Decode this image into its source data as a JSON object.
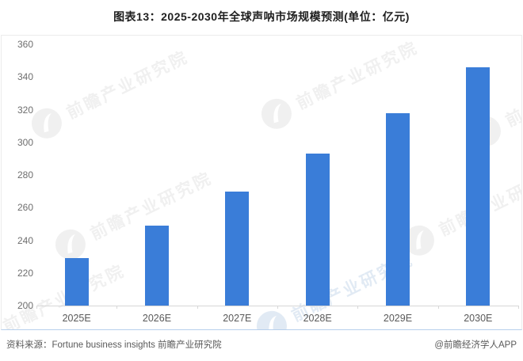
{
  "title": "图表13：2025-2030年全球声呐市场规模预测(单位：亿元)",
  "chart_data": {
    "type": "bar",
    "title": "图表13：2025-2030年全球声呐市场规模预测(单位：亿元)",
    "unit": "亿元",
    "categories": [
      "2025E",
      "2026E",
      "2027E",
      "2028E",
      "2029E",
      "2030E"
    ],
    "values": [
      229,
      249,
      270,
      293,
      318,
      346
    ],
    "xlabel": "",
    "ylabel": "",
    "ylim": [
      200,
      360
    ],
    "ytick_step": 20,
    "yticks": [
      200,
      220,
      240,
      260,
      280,
      300,
      320,
      340,
      360
    ],
    "bar_color": "#3a7dd8",
    "grid": false,
    "legend": "none"
  },
  "watermark": {
    "text": "前瞻产业研究院"
  },
  "footer": {
    "source": "资料来源：Fortune business insights 前瞻产业研究院",
    "brand": "@前瞻经济学人APP"
  }
}
